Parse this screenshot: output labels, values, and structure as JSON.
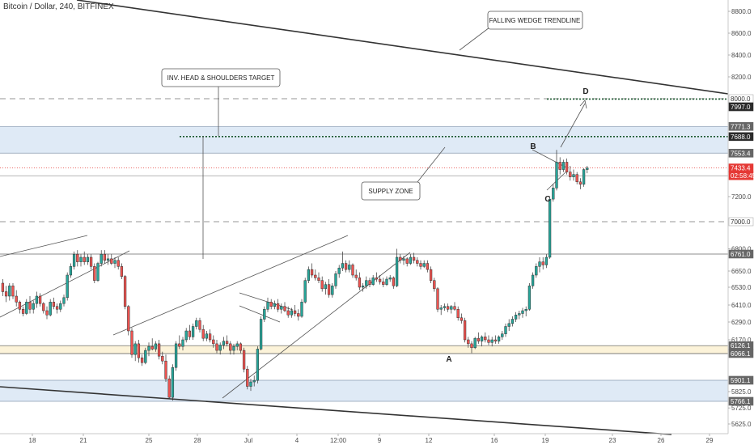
{
  "header": {
    "symbol": "Bitcoin / Dollar, 240, BITFINEX"
  },
  "colors": {
    "up": "#26a69a",
    "down": "#ef5350",
    "zone_blue": "#dfeaf6",
    "zone_yellow": "#fcf3d9",
    "trendline": "#333333",
    "dashed": "#aaaaaa",
    "dotted_green": "#1e5a32",
    "red_line": "#e53935"
  },
  "chart_data": {
    "type": "candlestick",
    "y_axis": {
      "ticks": [
        8800,
        8600,
        8400,
        8200,
        7200,
        6800,
        6650,
        6530,
        6410,
        6290,
        6170,
        5825,
        5725,
        5625
      ],
      "labels": [
        "8800.0",
        "8600.0",
        "8400.0",
        "8200.0",
        "7200.0",
        "6800.0",
        "6650.0",
        "6530.0",
        "6410.0",
        "6290.0",
        "6170.0",
        "5825.0",
        "5725.0",
        "5625.0"
      ]
    },
    "x_axis": {
      "labels": [
        "18",
        "21",
        "25",
        "28",
        "Jul",
        "4",
        "12:00",
        "9",
        "12",
        "16",
        "19",
        "23",
        "26",
        "29"
      ]
    },
    "price_labels": [
      {
        "text": "8000.0",
        "price": 8000,
        "style": "light"
      },
      {
        "text": "7997.0",
        "price": 7997,
        "style": "dark"
      },
      {
        "text": "7771.3",
        "price": 7771.3,
        "style": "gray"
      },
      {
        "text": "7688.0",
        "price": 7688,
        "style": "dark"
      },
      {
        "text": "7553.4",
        "price": 7553.4,
        "style": "gray"
      },
      {
        "text": "7433.4",
        "price": 7433.4,
        "style": "red"
      },
      {
        "text": "02:58:45",
        "price": 7370,
        "style": "red"
      },
      {
        "text": "7000.0",
        "price": 7000,
        "style": "light"
      },
      {
        "text": "6761.0",
        "price": 6761,
        "style": "gray"
      },
      {
        "text": "6126.1",
        "price": 6126.1,
        "style": "gray"
      },
      {
        "text": "6066.1",
        "price": 6066.1,
        "style": "gray"
      },
      {
        "text": "5901.1",
        "price": 5901.1,
        "style": "gray"
      },
      {
        "text": "5766.1",
        "price": 5766.1,
        "style": "gray"
      }
    ],
    "zones": [
      {
        "name": "supply-zone",
        "from": 7553.4,
        "to": 7771.3,
        "color": "blue"
      },
      {
        "name": "demand-zone-upper",
        "from": 6066.1,
        "to": 6126.1,
        "color": "yellow"
      },
      {
        "name": "demand-zone-lower",
        "from": 5766.1,
        "to": 5901.1,
        "color": "blue"
      }
    ],
    "horizontal_lines": [
      {
        "name": "target-8000",
        "price": 8000,
        "style": "dashed"
      },
      {
        "name": "level-7000",
        "price": 7000,
        "style": "dashed"
      },
      {
        "name": "target-7688",
        "price": 7688,
        "style": "dotted"
      },
      {
        "name": "target-7997",
        "price": 7997,
        "style": "dotted"
      },
      {
        "name": "current-price",
        "price": 7433.4,
        "style": "red"
      },
      {
        "name": "level-6761",
        "price": 6761,
        "style": "solid"
      }
    ],
    "annotations": [
      {
        "name": "falling-wedge-label",
        "text": "FALLING WEDGE TRENDLINE"
      },
      {
        "name": "inv-hs-label",
        "text": "INV. HEAD & SHOULDERS TARGET"
      },
      {
        "name": "supply-zone-label",
        "text": "SUPPLY ZONE"
      }
    ],
    "points": [
      {
        "label": "A",
        "price": 6070
      },
      {
        "label": "B",
        "price": 7590
      },
      {
        "label": "C",
        "price": 7240
      },
      {
        "label": "D",
        "price": 8095
      }
    ],
    "candles": [
      [
        6560,
        6590,
        6470,
        6500
      ],
      [
        6500,
        6540,
        6430,
        6470
      ],
      [
        6470,
        6560,
        6440,
        6540
      ],
      [
        6540,
        6560,
        6450,
        6470
      ],
      [
        6470,
        6510,
        6400,
        6430
      ],
      [
        6430,
        6440,
        6350,
        6380
      ],
      [
        6380,
        6400,
        6330,
        6350
      ],
      [
        6350,
        6450,
        6340,
        6430
      ],
      [
        6430,
        6470,
        6350,
        6380
      ],
      [
        6380,
        6440,
        6350,
        6420
      ],
      [
        6420,
        6500,
        6390,
        6470
      ],
      [
        6470,
        6490,
        6400,
        6420
      ],
      [
        6420,
        6430,
        6350,
        6370
      ],
      [
        6370,
        6400,
        6310,
        6340
      ],
      [
        6340,
        6450,
        6330,
        6430
      ],
      [
        6430,
        6460,
        6380,
        6400
      ],
      [
        6400,
        6420,
        6350,
        6380
      ],
      [
        6380,
        6440,
        6360,
        6420
      ],
      [
        6420,
        6480,
        6400,
        6460
      ],
      [
        6460,
        6640,
        6440,
        6620
      ],
      [
        6620,
        6700,
        6600,
        6680
      ],
      [
        6680,
        6780,
        6660,
        6760
      ],
      [
        6760,
        6790,
        6680,
        6710
      ],
      [
        6710,
        6760,
        6680,
        6740
      ],
      [
        6740,
        6780,
        6690,
        6710
      ],
      [
        6710,
        6760,
        6690,
        6740
      ],
      [
        6740,
        6760,
        6660,
        6680
      ],
      [
        6680,
        6700,
        6560,
        6580
      ],
      [
        6580,
        6710,
        6570,
        6700
      ],
      [
        6700,
        6790,
        6680,
        6760
      ],
      [
        6760,
        6790,
        6700,
        6720
      ],
      [
        6720,
        6760,
        6690,
        6730
      ],
      [
        6730,
        6760,
        6690,
        6700
      ],
      [
        6700,
        6740,
        6670,
        6720
      ],
      [
        6720,
        6740,
        6660,
        6680
      ],
      [
        6680,
        6700,
        6590,
        6610
      ],
      [
        6610,
        6620,
        6380,
        6400
      ],
      [
        6400,
        6410,
        6200,
        6230
      ],
      [
        6230,
        6250,
        6040,
        6060
      ],
      [
        6060,
        6160,
        6020,
        6140
      ],
      [
        6140,
        6170,
        6010,
        6040
      ],
      [
        6040,
        6060,
        5990,
        6010
      ],
      [
        6010,
        6110,
        6000,
        6090
      ],
      [
        6090,
        6150,
        6050,
        6120
      ],
      [
        6120,
        6180,
        6090,
        6100
      ],
      [
        6100,
        6160,
        6080,
        6140
      ],
      [
        6140,
        6170,
        6030,
        6050
      ],
      [
        6050,
        6080,
        6000,
        6020
      ],
      [
        6020,
        6060,
        5890,
        5910
      ],
      [
        5910,
        5930,
        5780,
        5790
      ],
      [
        5790,
        6000,
        5770,
        5980
      ],
      [
        5980,
        6160,
        5960,
        6140
      ],
      [
        6140,
        6200,
        6100,
        6120
      ],
      [
        6120,
        6190,
        6090,
        6170
      ],
      [
        6170,
        6250,
        6150,
        6230
      ],
      [
        6230,
        6270,
        6170,
        6190
      ],
      [
        6190,
        6280,
        6170,
        6260
      ],
      [
        6260,
        6320,
        6240,
        6300
      ],
      [
        6300,
        6320,
        6220,
        6240
      ],
      [
        6240,
        6270,
        6160,
        6180
      ],
      [
        6180,
        6230,
        6160,
        6210
      ],
      [
        6210,
        6240,
        6150,
        6170
      ],
      [
        6170,
        6200,
        6110,
        6140
      ],
      [
        6140,
        6170,
        6070,
        6090
      ],
      [
        6090,
        6150,
        6060,
        6130
      ],
      [
        6130,
        6190,
        6100,
        6160
      ],
      [
        6160,
        6200,
        6120,
        6140
      ],
      [
        6140,
        6160,
        6060,
        6090
      ],
      [
        6090,
        6140,
        6060,
        6120
      ],
      [
        6120,
        6160,
        6090,
        6140
      ],
      [
        6140,
        6150,
        6070,
        6090
      ],
      [
        6090,
        6110,
        5950,
        5970
      ],
      [
        5970,
        5990,
        5840,
        5860
      ],
      [
        5860,
        5910,
        5830,
        5890
      ],
      [
        5890,
        5930,
        5860,
        5900
      ],
      [
        5900,
        6120,
        5880,
        6100
      ],
      [
        6100,
        6330,
        6090,
        6310
      ],
      [
        6310,
        6400,
        6290,
        6380
      ],
      [
        6380,
        6460,
        6360,
        6430
      ],
      [
        6430,
        6450,
        6380,
        6400
      ],
      [
        6400,
        6440,
        6380,
        6420
      ],
      [
        6420,
        6450,
        6360,
        6380
      ],
      [
        6380,
        6420,
        6350,
        6400
      ],
      [
        6400,
        6430,
        6360,
        6370
      ],
      [
        6370,
        6400,
        6320,
        6340
      ],
      [
        6340,
        6390,
        6320,
        6370
      ],
      [
        6370,
        6410,
        6330,
        6350
      ],
      [
        6350,
        6380,
        6300,
        6330
      ],
      [
        6330,
        6450,
        6320,
        6430
      ],
      [
        6430,
        6600,
        6420,
        6580
      ],
      [
        6580,
        6680,
        6560,
        6660
      ],
      [
        6660,
        6700,
        6600,
        6620
      ],
      [
        6620,
        6660,
        6580,
        6600
      ],
      [
        6600,
        6640,
        6560,
        6580
      ],
      [
        6580,
        6610,
        6500,
        6520
      ],
      [
        6520,
        6570,
        6480,
        6550
      ],
      [
        6550,
        6590,
        6460,
        6480
      ],
      [
        6480,
        6560,
        6460,
        6540
      ],
      [
        6540,
        6650,
        6520,
        6630
      ],
      [
        6630,
        6690,
        6600,
        6670
      ],
      [
        6670,
        6780,
        6650,
        6700
      ],
      [
        6700,
        6720,
        6640,
        6660
      ],
      [
        6660,
        6720,
        6640,
        6690
      ],
      [
        6690,
        6700,
        6600,
        6620
      ],
      [
        6620,
        6660,
        6580,
        6600
      ],
      [
        6600,
        6640,
        6510,
        6530
      ],
      [
        6530,
        6560,
        6500,
        6540
      ],
      [
        6540,
        6610,
        6520,
        6580
      ],
      [
        6580,
        6600,
        6530,
        6550
      ],
      [
        6550,
        6620,
        6540,
        6600
      ],
      [
        6600,
        6640,
        6570,
        6590
      ],
      [
        6590,
        6620,
        6550,
        6570
      ],
      [
        6570,
        6600,
        6530,
        6550
      ],
      [
        6550,
        6610,
        6540,
        6590
      ],
      [
        6590,
        6620,
        6570,
        6600
      ],
      [
        6600,
        6610,
        6520,
        6540
      ],
      [
        6540,
        6800,
        6530,
        6740
      ],
      [
        6740,
        6760,
        6700,
        6720
      ],
      [
        6720,
        6750,
        6690,
        6730
      ],
      [
        6730,
        6740,
        6680,
        6700
      ],
      [
        6700,
        6760,
        6690,
        6740
      ],
      [
        6740,
        6770,
        6700,
        6720
      ],
      [
        6720,
        6740,
        6680,
        6700
      ],
      [
        6700,
        6720,
        6660,
        6680
      ],
      [
        6680,
        6720,
        6670,
        6700
      ],
      [
        6700,
        6720,
        6640,
        6660
      ],
      [
        6660,
        6680,
        6560,
        6580
      ],
      [
        6580,
        6600,
        6500,
        6520
      ],
      [
        6520,
        6530,
        6360,
        6380
      ],
      [
        6380,
        6410,
        6340,
        6390
      ],
      [
        6390,
        6420,
        6370,
        6400
      ],
      [
        6400,
        6420,
        6360,
        6380
      ],
      [
        6380,
        6410,
        6350,
        6400
      ],
      [
        6400,
        6430,
        6370,
        6380
      ],
      [
        6380,
        6400,
        6300,
        6320
      ],
      [
        6320,
        6350,
        6280,
        6300
      ],
      [
        6300,
        6320,
        6150,
        6170
      ],
      [
        6170,
        6190,
        6110,
        6140
      ],
      [
        6140,
        6160,
        6070,
        6110
      ],
      [
        6110,
        6190,
        6100,
        6180
      ],
      [
        6180,
        6220,
        6140,
        6160
      ],
      [
        6160,
        6200,
        6120,
        6190
      ],
      [
        6190,
        6220,
        6150,
        6170
      ],
      [
        6170,
        6200,
        6130,
        6150
      ],
      [
        6150,
        6190,
        6120,
        6170
      ],
      [
        6170,
        6200,
        6140,
        6160
      ],
      [
        6160,
        6200,
        6140,
        6190
      ],
      [
        6190,
        6230,
        6170,
        6210
      ],
      [
        6210,
        6280,
        6190,
        6260
      ],
      [
        6260,
        6310,
        6230,
        6280
      ],
      [
        6280,
        6330,
        6260,
        6310
      ],
      [
        6310,
        6360,
        6290,
        6340
      ],
      [
        6340,
        6370,
        6310,
        6350
      ],
      [
        6350,
        6390,
        6320,
        6370
      ],
      [
        6370,
        6400,
        6330,
        6380
      ],
      [
        6380,
        6560,
        6370,
        6540
      ],
      [
        6540,
        6640,
        6520,
        6620
      ],
      [
        6620,
        6700,
        6600,
        6680
      ],
      [
        6680,
        6740,
        6640,
        6710
      ],
      [
        6710,
        6740,
        6660,
        6690
      ],
      [
        6690,
        6760,
        6670,
        6740
      ],
      [
        6740,
        7200,
        6730,
        7180
      ],
      [
        7180,
        7300,
        7160,
        7270
      ],
      [
        7270,
        7580,
        7250,
        7480
      ],
      [
        7480,
        7520,
        7380,
        7420
      ],
      [
        7420,
        7500,
        7400,
        7480
      ],
      [
        7480,
        7510,
        7380,
        7400
      ],
      [
        7400,
        7450,
        7330,
        7360
      ],
      [
        7360,
        7420,
        7330,
        7380
      ],
      [
        7380,
        7400,
        7300,
        7320
      ],
      [
        7320,
        7350,
        7260,
        7300
      ],
      [
        7300,
        7430,
        7280,
        7420
      ],
      [
        7420,
        7450,
        7390,
        7433.4
      ]
    ]
  }
}
